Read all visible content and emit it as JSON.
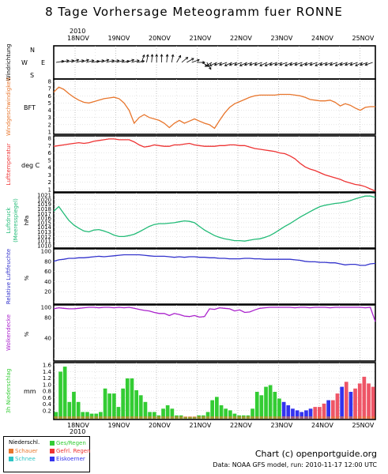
{
  "title": "8 Tage Vorhersage Meteogramm fuer RONNE",
  "year": "2010",
  "dates": [
    "18NOV",
    "19NOV",
    "20NOV",
    "21NOV",
    "22NOV",
    "23NOV",
    "24NOV",
    "25NOV"
  ],
  "compass": {
    "n": "N",
    "w": "W",
    "e": "E",
    "s": "S"
  },
  "panel_labels": {
    "wind_dir": "Windrichtung",
    "wind_speed": "Windgeschwindigkeit",
    "wind_unit": "BFT",
    "temp": "Lufttemperatur",
    "temp_unit": "deg C",
    "pressure": "Luftdruck\n(Meeresspiegel)",
    "pressure_l1": "Luftdruck",
    "pressure_l2": "(Meeresspiegel)",
    "pressure_unit": "hPa",
    "humidity": "Relative Luftfeuchte",
    "humidity_unit": "%",
    "cloud": "Wolkendecke",
    "cloud_unit": "%",
    "precip": "3h Niederschlag",
    "precip_unit": "mm"
  },
  "legend": {
    "header": "Niederschl.",
    "items": [
      {
        "label": "Schauer",
        "color": "#e8762d"
      },
      {
        "label": "Schnee",
        "color": "#2ec4c4"
      },
      {
        "label": "Ges/Regen",
        "color": "#33cc33"
      },
      {
        "label": "Gefrl. Regen",
        "color": "#ee3333"
      },
      {
        "label": "Eiskoerner",
        "color": "#3333ee"
      }
    ]
  },
  "footer": {
    "credit": "Chart (c) openportguide.org",
    "source": "Data: NOAA GFS model, run: 2010-11-17 12:00 UTC"
  },
  "chart_data": {
    "type": "line",
    "x_label_dates": [
      "18NOV",
      "19NOV",
      "20NOV",
      "21NOV",
      "22NOV",
      "23NOV",
      "24NOV",
      "25NOV"
    ],
    "time_step_hours": 3,
    "series": [
      {
        "name": "Windgeschwindigkeit",
        "unit": "BFT",
        "color": "#e8762d",
        "ylim": [
          1,
          8
        ],
        "values": [
          6.5,
          7.2,
          6.9,
          6.3,
          5.8,
          5.4,
          5.1,
          5.0,
          5.2,
          5.4,
          5.6,
          5.7,
          5.8,
          5.6,
          5.0,
          4.0,
          2.2,
          3.0,
          3.4,
          3.0,
          2.8,
          2.6,
          2.2,
          1.6,
          2.2,
          2.6,
          2.2,
          2.5,
          2.8,
          2.5,
          2.2,
          2.0,
          1.5,
          2.6,
          3.6,
          4.4,
          4.9,
          5.2,
          5.5,
          5.8,
          6.0,
          6.1,
          6.1,
          6.1,
          6.1,
          6.2,
          6.2,
          6.2,
          6.1,
          6.0,
          5.8,
          5.5,
          5.4,
          5.3,
          5.3,
          5.4,
          5.1,
          4.6,
          4.9,
          4.7,
          4.3,
          4.0,
          4.4,
          4.5,
          4.5
        ]
      },
      {
        "name": "Lufttemperatur",
        "unit": "deg C",
        "color": "#ee3333",
        "ylim": [
          1,
          8
        ],
        "values": [
          6.9,
          7.0,
          7.1,
          7.2,
          7.3,
          7.4,
          7.3,
          7.4,
          7.6,
          7.7,
          7.8,
          7.9,
          7.9,
          7.8,
          7.8,
          7.8,
          7.5,
          7.1,
          6.8,
          6.9,
          7.1,
          7.0,
          6.9,
          6.9,
          7.1,
          7.1,
          7.2,
          7.3,
          7.1,
          7.0,
          6.9,
          6.9,
          6.9,
          7.0,
          7.0,
          7.1,
          7.1,
          7.0,
          7.0,
          6.8,
          6.6,
          6.5,
          6.4,
          6.3,
          6.2,
          6.0,
          5.9,
          5.6,
          5.2,
          4.6,
          4.1,
          3.8,
          3.6,
          3.3,
          3.0,
          2.8,
          2.6,
          2.4,
          2.1,
          1.9,
          1.7,
          1.6,
          1.4,
          1.1,
          0.8
        ]
      },
      {
        "name": "Luftdruck",
        "unit": "hPa",
        "color": "#22bb77",
        "ylim": [
          1010,
          1021
        ],
        "values": [
          1017.5,
          1018.5,
          1017.0,
          1015.5,
          1014.5,
          1013.8,
          1013.2,
          1013.0,
          1013.4,
          1013.5,
          1013.2,
          1012.8,
          1012.3,
          1012.0,
          1012.0,
          1012.2,
          1012.5,
          1013.0,
          1013.6,
          1014.2,
          1014.6,
          1014.8,
          1014.8,
          1014.9,
          1015.0,
          1015.2,
          1015.4,
          1015.3,
          1015.0,
          1014.2,
          1013.4,
          1012.8,
          1012.2,
          1011.8,
          1011.5,
          1011.3,
          1011.1,
          1011.1,
          1011.0,
          1011.2,
          1011.4,
          1011.5,
          1011.8,
          1012.2,
          1012.8,
          1013.5,
          1014.2,
          1014.8,
          1015.5,
          1016.2,
          1016.8,
          1017.4,
          1018.0,
          1018.5,
          1018.8,
          1019.0,
          1019.2,
          1019.3,
          1019.5,
          1019.8,
          1020.2,
          1020.5,
          1020.8,
          1020.8,
          1020.5
        ]
      },
      {
        "name": "Relative Luftfeuchte",
        "unit": "%",
        "color": "#3333cc",
        "ylim": [
          0,
          100
        ],
        "values": [
          80,
          83,
          84,
          86,
          86,
          87,
          87,
          88,
          89,
          90,
          89,
          90,
          91,
          92,
          93,
          93,
          93,
          93,
          92,
          91,
          90,
          90,
          90,
          89,
          88,
          89,
          88,
          89,
          89,
          88,
          88,
          87,
          87,
          86,
          86,
          85,
          85,
          85,
          86,
          86,
          85,
          85,
          84,
          84,
          84,
          84,
          84,
          84,
          83,
          82,
          80,
          79,
          79,
          78,
          78,
          77,
          77,
          75,
          73,
          74,
          74,
          72,
          72,
          75,
          76
        ]
      },
      {
        "name": "Wolkendecke",
        "unit": "%",
        "color": "#aa22cc",
        "ylim": [
          0,
          100
        ],
        "values": [
          97,
          99,
          98,
          97,
          97,
          98,
          99,
          100,
          100,
          99,
          100,
          100,
          99,
          100,
          99,
          100,
          98,
          96,
          94,
          93,
          90,
          88,
          88,
          84,
          88,
          86,
          83,
          82,
          84,
          81,
          82,
          97,
          96,
          99,
          98,
          97,
          93,
          95,
          90,
          91,
          95,
          98,
          99,
          100,
          100,
          100,
          100,
          100,
          99,
          100,
          100,
          99,
          100,
          100,
          100,
          99,
          100,
          100,
          100,
          100,
          100,
          100,
          99,
          100,
          72
        ]
      },
      {
        "name": "3h Niederschlag",
        "unit": "mm",
        "type": "bar",
        "ylim": [
          0,
          1.6
        ],
        "values": [
          0.2,
          1.4,
          1.55,
          0.5,
          0.8,
          0.5,
          0.2,
          0.2,
          0.15,
          0.15,
          0.2,
          0.9,
          0.75,
          0.75,
          0.35,
          0.9,
          1.2,
          1.2,
          0.85,
          0.7,
          0.5,
          0.2,
          0.2,
          0.1,
          0.3,
          0.4,
          0.3,
          0.1,
          0.1,
          0.05,
          0.05,
          0.05,
          0.1,
          0.1,
          0.2,
          0.55,
          0.65,
          0.4,
          0.3,
          0.25,
          0.15,
          0.1,
          0.1,
          0.1,
          0.3,
          0.8,
          0.7,
          0.95,
          1.0,
          0.8,
          0.6,
          0.5,
          0.4,
          0.3,
          0.25,
          0.2,
          0.25,
          0.3,
          0.35,
          0.35,
          0.45,
          0.55,
          0.55,
          0.75,
          0.95,
          1.1,
          0.8,
          0.9,
          1.05,
          1.25,
          1.05,
          0.95
        ],
        "kinds": [
          "g",
          "g",
          "g",
          "g",
          "g",
          "g",
          "g",
          "g",
          "g",
          "g",
          "g",
          "g",
          "g",
          "g",
          "g",
          "g",
          "g",
          "g",
          "g",
          "g",
          "g",
          "g",
          "g",
          "g",
          "g",
          "g",
          "g",
          "g",
          "g",
          "g",
          "g",
          "g",
          "g",
          "g",
          "g",
          "g",
          "g",
          "g",
          "g",
          "g",
          "g",
          "g",
          "g",
          "g",
          "g",
          "g",
          "g",
          "g",
          "g",
          "g",
          "g",
          "b",
          "b",
          "b",
          "b",
          "b",
          "b",
          "b",
          "r",
          "r",
          "r",
          "b",
          "r",
          "r",
          "b",
          "r",
          "b",
          "r",
          "r",
          "r",
          "r",
          "r"
        ]
      }
    ],
    "wind_direction_deg": [
      260,
      255,
      255,
      250,
      255,
      250,
      255,
      260,
      255,
      250,
      255,
      255,
      255,
      260,
      250,
      255,
      260,
      200,
      190,
      185,
      180,
      180,
      185,
      190,
      210,
      230,
      240,
      250,
      270,
      300,
      330,
      60,
      65,
      70,
      70,
      65,
      70,
      70,
      65,
      70,
      70,
      70,
      65,
      65,
      70,
      70,
      70,
      65,
      70,
      70,
      65,
      70,
      70,
      65,
      70,
      70,
      70,
      65,
      70,
      70,
      70,
      65,
      70,
      70
    ]
  }
}
